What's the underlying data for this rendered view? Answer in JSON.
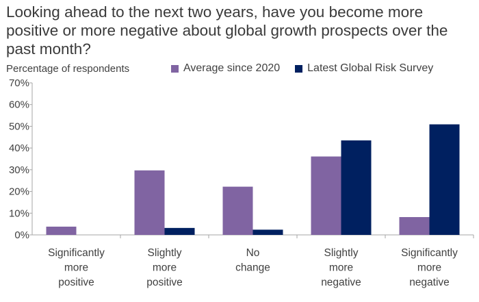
{
  "chart_data": {
    "type": "bar",
    "title": "Looking ahead to the next two years, have you become more positive or more negative about global growth prospects over the past month?",
    "ylabel": "Percentage of respondents",
    "xlabel": "",
    "categories": [
      [
        "Significantly",
        "more",
        "positive"
      ],
      [
        "Slightly",
        "more",
        "positive"
      ],
      [
        "No",
        "change"
      ],
      [
        "Slightly",
        "more",
        "negative"
      ],
      [
        "Significantly",
        "more",
        "negative"
      ]
    ],
    "series": [
      {
        "name": "Average since 2020",
        "color": "#8064a2",
        "values": [
          3.8,
          29.7,
          22.2,
          36.1,
          8.2
        ]
      },
      {
        "name": "Latest Global Risk Survey",
        "color": "#002060",
        "values": [
          0,
          3.2,
          2.4,
          43.5,
          50.9
        ]
      }
    ],
    "ylim": [
      0,
      70
    ],
    "yticks": [
      "0%",
      "10%",
      "20%",
      "30%",
      "40%",
      "50%",
      "60%",
      "70%"
    ],
    "ytick_values": [
      0,
      10,
      20,
      30,
      40,
      50,
      60,
      70
    ],
    "grid": false,
    "legend_position": "top"
  }
}
